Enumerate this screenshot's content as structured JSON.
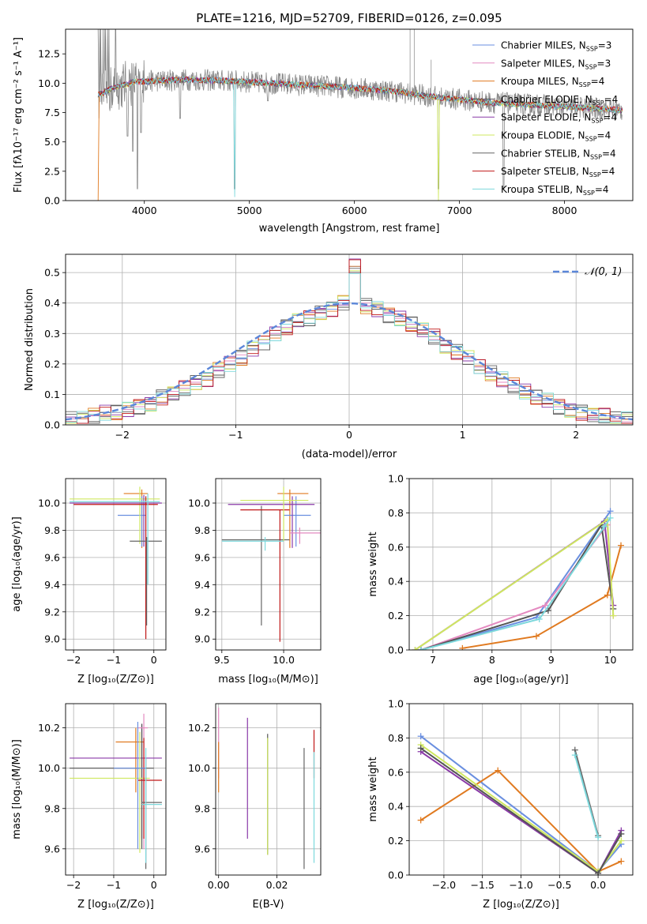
{
  "colors": {
    "Chabrier MILES": "#6a8fe0",
    "Salpeter MILES": "#e48ac0",
    "Kroupa MILES": "#e07a20",
    "Chabrier ELODIE": "#555555",
    "Salpeter ELODIE": "#8a3aa8",
    "Kroupa ELODIE": "#cfe860",
    "Chabrier STELIB": "#666666",
    "Salpeter STELIB": "#c01818",
    "Kroupa STELIB": "#7dd8dc"
  },
  "chart_data": [
    {
      "id": "spectrum",
      "type": "line",
      "title": "PLATE=1216, MJD=52709, FIBERID=0126, z=0.095",
      "xlabel": "wavelength [Angstrom, rest frame]",
      "ylabel": "Flux [fλ10⁻¹⁷ erg cm⁻² s⁻¹ A⁻¹]",
      "xlim": [
        3250,
        8650
      ],
      "ylim": [
        0,
        14.6
      ],
      "xticks": [
        "4000",
        "5000",
        "6000",
        "7000",
        "8000"
      ],
      "yticks": [
        "0.0",
        "2.5",
        "5.0",
        "7.5",
        "10.0",
        "12.5"
      ],
      "legend_position": "top-right",
      "legend": [
        {
          "model": "Chabrier MILES",
          "nssp": "3"
        },
        {
          "model": "Salpeter MILES",
          "nssp": "3"
        },
        {
          "model": "Kroupa MILES",
          "nssp": "4"
        },
        {
          "model": "Chabrier ELODIE",
          "nssp": "4"
        },
        {
          "model": "Salpeter ELODIE",
          "nssp": "4"
        },
        {
          "model": "Kroupa ELODIE",
          "nssp": "4"
        },
        {
          "model": "Chabrier STELIB",
          "nssp": "4"
        },
        {
          "model": "Salpeter STELIB",
          "nssp": "4"
        },
        {
          "model": "Kroupa STELIB",
          "nssp": "4"
        }
      ],
      "continuum": {
        "x": [
          3560,
          3700,
          3900,
          4100,
          4400,
          4800,
          5200,
          5600,
          6000,
          6400,
          6700,
          7000,
          7400,
          7800,
          8200,
          8550
        ],
        "y": [
          9.0,
          9.6,
          10.1,
          10.2,
          10.3,
          10.2,
          10.0,
          9.8,
          9.6,
          9.3,
          8.9,
          8.6,
          8.3,
          8.1,
          7.9,
          7.7
        ]
      },
      "data_noise": 1.6,
      "absorption_dips": [
        {
          "x": 3840,
          "y": 4.5
        },
        {
          "x": 3890,
          "y": 3.2
        },
        {
          "x": 3934,
          "y": 0.0
        },
        {
          "x": 3969,
          "y": 4.8
        },
        {
          "x": 4340,
          "y": 6.0
        },
        {
          "x": 4861,
          "y": 0.0
        },
        {
          "x": 5175,
          "y": 7.5
        },
        {
          "x": 5890,
          "y": 7.8
        },
        {
          "x": 6800,
          "y": 0.0
        },
        {
          "x": 7420,
          "y": 0.0
        }
      ],
      "emission_spikes": [
        {
          "x": 6530,
          "y": 14.6
        },
        {
          "x": 6570,
          "y": 14.6
        },
        {
          "x": 6730,
          "y": 12.0
        }
      ]
    },
    {
      "id": "residual-histogram",
      "type": "area",
      "xlabel": "(data-model)/error",
      "ylabel": "Normed distribution",
      "xlim": [
        -2.5,
        2.5
      ],
      "ylim": [
        0,
        0.56
      ],
      "xticks": [
        "−2",
        "−1",
        "0",
        "1",
        "2"
      ],
      "yticks": [
        "0.0",
        "0.1",
        "0.2",
        "0.3",
        "0.4",
        "0.5"
      ],
      "legend_position": "top-right",
      "reference_curve": "𝒩(0, 1)",
      "bin_width": 0.1,
      "bin_start": -2.5,
      "series": [
        {
          "name": "Chabrier MILES",
          "values": [
            0.02,
            0.02,
            0.03,
            0.04,
            0.04,
            0.05,
            0.06,
            0.07,
            0.09,
            0.1,
            0.12,
            0.14,
            0.15,
            0.18,
            0.2,
            0.22,
            0.25,
            0.27,
            0.3,
            0.32,
            0.34,
            0.35,
            0.37,
            0.38,
            0.4,
            0.52,
            0.39,
            0.38,
            0.36,
            0.35,
            0.33,
            0.31,
            0.29,
            0.26,
            0.24,
            0.22,
            0.19,
            0.17,
            0.15,
            0.13,
            0.11,
            0.09,
            0.08,
            0.06,
            0.05,
            0.04,
            0.03,
            0.03,
            0.02,
            0.02
          ]
        },
        {
          "name": "Salpeter MILES",
          "values": [
            0.02,
            0.02,
            0.03,
            0.03,
            0.04,
            0.05,
            0.06,
            0.08,
            0.09,
            0.11,
            0.12,
            0.14,
            0.16,
            0.18,
            0.21,
            0.23,
            0.26,
            0.28,
            0.3,
            0.32,
            0.34,
            0.36,
            0.38,
            0.39,
            0.41,
            0.5,
            0.4,
            0.39,
            0.37,
            0.35,
            0.33,
            0.31,
            0.28,
            0.26,
            0.23,
            0.21,
            0.19,
            0.16,
            0.14,
            0.12,
            0.1,
            0.09,
            0.07,
            0.06,
            0.05,
            0.04,
            0.03,
            0.02,
            0.02,
            0.01
          ]
        }
      ],
      "variation_note": null
    },
    {
      "id": "age-vs-z",
      "type": "scatter",
      "xlabel": "Z [log₁₀(Z/Z⊙)]",
      "ylabel": "age [log₁₀(age/yr)]",
      "xlim": [
        -2.2,
        0.3
      ],
      "ylim": [
        8.92,
        10.18
      ],
      "xticks": [
        "−2",
        "−1",
        "0"
      ],
      "yticks": [
        "9.0",
        "9.2",
        "9.4",
        "9.6",
        "9.8",
        "10.0"
      ]
    },
    {
      "id": "age-vs-mass",
      "type": "scatter",
      "xlabel": "mass [log₁₀(M/M⊙)]",
      "ylabel": "",
      "xlim": [
        9.45,
        10.3
      ],
      "ylim": [
        8.92,
        10.18
      ],
      "xticks": [
        "9.5",
        "10.0"
      ],
      "yticks": [
        "9.0",
        "9.2",
        "9.4",
        "9.6",
        "9.8",
        "10.0"
      ]
    },
    {
      "id": "weight-vs-age",
      "type": "line",
      "xlabel": "age [log₁₀(age/yr)]",
      "ylabel": "mass weight",
      "xlim": [
        6.6,
        10.38
      ],
      "ylim": [
        0,
        1
      ],
      "xticks": [
        "7",
        "8",
        "9",
        "10"
      ],
      "yticks": [
        "0.0",
        "0.2",
        "0.4",
        "0.6",
        "0.8",
        "1.0"
      ],
      "series": [
        {
          "name": "Chabrier MILES",
          "x": [
            6.8,
            8.75,
            10.0
          ],
          "y": [
            0.0,
            0.19,
            0.81
          ]
        },
        {
          "name": "Salpeter MILES",
          "x": [
            6.8,
            8.9,
            9.95,
            10.05
          ],
          "y": [
            0.0,
            0.26,
            0.73,
            0.2
          ]
        },
        {
          "name": "Kroupa MILES",
          "x": [
            7.5,
            8.75,
            9.95,
            10.18
          ],
          "y": [
            0.01,
            0.08,
            0.32,
            0.61
          ]
        },
        {
          "name": "Chabrier ELODIE",
          "x": [
            6.8,
            8.95,
            9.85,
            10.05
          ],
          "y": [
            0.0,
            0.23,
            0.73,
            0.24
          ]
        },
        {
          "name": "Salpeter ELODIE",
          "x": [
            6.7,
            9.9,
            10.05
          ],
          "y": [
            0.0,
            0.75,
            0.26
          ]
        },
        {
          "name": "Kroupa ELODIE",
          "x": [
            6.7,
            9.95,
            10.05
          ],
          "y": [
            0.0,
            0.76,
            0.2
          ]
        },
        {
          "name": "Kroupa STELIB",
          "x": [
            6.8,
            8.8,
            9.9,
            10.0
          ],
          "y": [
            0.0,
            0.18,
            0.72,
            0.77
          ]
        }
      ]
    },
    {
      "id": "mass-vs-z",
      "type": "scatter",
      "xlabel": "Z [log₁₀(Z/Z⊙)]",
      "ylabel": "mass [log₁₀(M/M⊙)]",
      "xlim": [
        -2.2,
        0.3
      ],
      "ylim": [
        9.47,
        10.32
      ],
      "xticks": [
        "−2",
        "−1",
        "0"
      ],
      "yticks": [
        "9.6",
        "9.8",
        "10.0",
        "10.2"
      ]
    },
    {
      "id": "mass-vs-ebv",
      "type": "scatter",
      "xlabel": "E(B-V)",
      "ylabel": "",
      "xlim": [
        -0.001,
        0.035
      ],
      "ylim": [
        9.47,
        10.32
      ],
      "xticks": [
        "0.00",
        "0.02"
      ],
      "yticks": [
        "9.6",
        "9.8",
        "10.0",
        "10.2"
      ],
      "ebv_bars": [
        {
          "name": "Salpeter MILES",
          "x": 0.0,
          "lo": 9.95,
          "hi": 10.3
        },
        {
          "name": "Kroupa MILES",
          "x": 0.0,
          "lo": 9.88,
          "hi": 10.13
        },
        {
          "name": "Salpeter ELODIE",
          "x": 0.0099,
          "lo": 9.65,
          "hi": 10.25
        },
        {
          "name": "Chabrier ELODIE",
          "x": 0.0168,
          "lo": 9.57,
          "hi": 10.17
        },
        {
          "name": "Kroupa ELODIE",
          "x": 0.0168,
          "lo": 9.57,
          "hi": 10.15
        },
        {
          "name": "Chabrier STELIB",
          "x": 0.0293,
          "lo": 9.5,
          "hi": 10.1
        },
        {
          "name": "Salpeter STELIB",
          "x": 0.0327,
          "lo": 9.95,
          "hi": 10.19
        },
        {
          "name": "Kroupa STELIB",
          "x": 0.0327,
          "lo": 9.53,
          "hi": 10.08
        }
      ]
    },
    {
      "id": "weight-vs-z",
      "type": "line",
      "xlabel": "Z [log₁₀(Z/Z⊙)]",
      "ylabel": "mass weight",
      "xlim": [
        -2.45,
        0.45
      ],
      "ylim": [
        0,
        1
      ],
      "xticks": [
        "−2.0",
        "−1.5",
        "−1.0",
        "−0.5",
        "0.0"
      ],
      "yticks": [
        "0.0",
        "0.2",
        "0.4",
        "0.6",
        "0.8",
        "1.0"
      ],
      "series": [
        {
          "name": "Chabrier MILES",
          "x": [
            -2.3,
            0.0,
            0.3
          ],
          "y": [
            0.81,
            0.02,
            0.18
          ]
        },
        {
          "name": "Kroupa MILES",
          "x": [
            -2.3,
            -1.3,
            0.0,
            0.3
          ],
          "y": [
            0.32,
            0.61,
            0.02,
            0.08
          ]
        },
        {
          "name": "Salpeter ELODIE",
          "x": [
            -2.3,
            0.0,
            0.3
          ],
          "y": [
            0.72,
            0.01,
            0.26
          ]
        },
        {
          "name": "Kroupa ELODIE",
          "x": [
            -2.3,
            0.0,
            0.3
          ],
          "y": [
            0.76,
            0.02,
            0.2
          ]
        },
        {
          "name": "Chabrier ELODIE",
          "x": [
            -2.3,
            0.0,
            0.3
          ],
          "y": [
            0.74,
            0.01,
            0.24
          ]
        },
        {
          "name": "Chabrier STELIB",
          "x": [
            -0.3,
            0.0
          ],
          "y": [
            0.73,
            0.23
          ]
        },
        {
          "name": "Kroupa STELIB",
          "x": [
            -0.3,
            0.0
          ],
          "y": [
            0.7,
            0.22
          ]
        }
      ]
    }
  ]
}
